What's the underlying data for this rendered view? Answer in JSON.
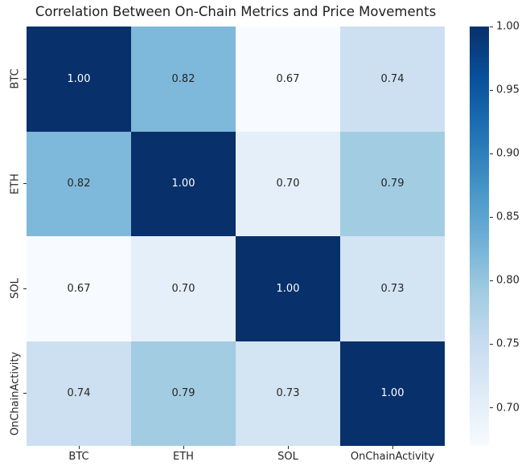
{
  "chart_data": {
    "type": "heatmap",
    "title": "Correlation Between On-Chain Metrics and Price Movements",
    "categories": [
      "BTC",
      "ETH",
      "SOL",
      "OnChainActivity"
    ],
    "x_axis_labels": [
      "BTC",
      "ETH",
      "SOL",
      "OnChainActivity"
    ],
    "y_axis_labels": [
      "BTC",
      "ETH",
      "SOL",
      "OnChainActivity"
    ],
    "matrix": [
      [
        1.0,
        0.82,
        0.67,
        0.74
      ],
      [
        0.82,
        1.0,
        0.7,
        0.79
      ],
      [
        0.67,
        0.7,
        1.0,
        0.73
      ],
      [
        0.74,
        0.79,
        0.73,
        1.0
      ]
    ],
    "value_decimals": 2,
    "vmin": 0.67,
    "vmax": 1.0,
    "legend_position": "right-colorbar",
    "grid": false,
    "colormap": {
      "name": "Blues",
      "stops": [
        {
          "pos": 0.0,
          "color": "#f7fbff"
        },
        {
          "pos": 0.125,
          "color": "#deebf7"
        },
        {
          "pos": 0.25,
          "color": "#c6dbef"
        },
        {
          "pos": 0.375,
          "color": "#9ecae1"
        },
        {
          "pos": 0.5,
          "color": "#6baed6"
        },
        {
          "pos": 0.625,
          "color": "#4292c6"
        },
        {
          "pos": 0.75,
          "color": "#2171b5"
        },
        {
          "pos": 0.875,
          "color": "#08519c"
        },
        {
          "pos": 1.0,
          "color": "#08306b"
        }
      ]
    },
    "colorbar": {
      "ticks": [
        1.0,
        0.95,
        0.9,
        0.85,
        0.8,
        0.75,
        0.7
      ],
      "tick_labels": [
        "1.00",
        "0.95",
        "0.90",
        "0.85",
        "0.80",
        "0.75",
        "0.70"
      ]
    },
    "colors": {
      "background": "#ffffff",
      "title_text": "#1f1f1f",
      "tick_text": "#262626",
      "annot_on_dark": "#ffffff",
      "annot_on_light": "#262626",
      "max_cell": "#08306b",
      "min_cell": "#f7fbff"
    }
  }
}
